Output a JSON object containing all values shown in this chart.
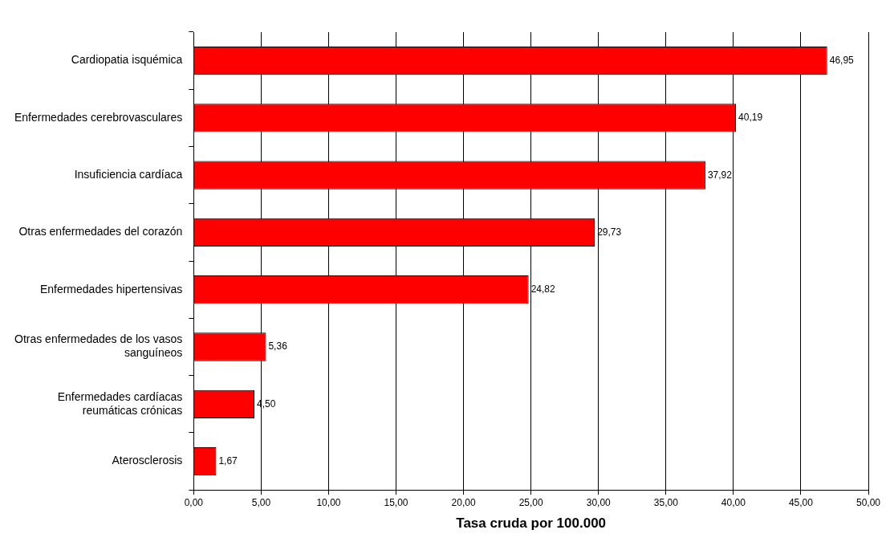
{
  "chart_data": {
    "type": "bar",
    "orientation": "horizontal",
    "xlabel": "Tasa cruda por 100.000",
    "categories": [
      "Cardiopatia isquémica",
      "Enfermedades cerebrovasculares",
      "Insuficiencia cardíaca",
      "Otras enfermedades del corazón",
      "Enfermedades hipertensivas",
      "Otras enfermedades de los vasos sanguíneos",
      "Enfermedades cardíacas reumáticas crónicas",
      "Aterosclerosis"
    ],
    "values": [
      46.95,
      40.19,
      37.92,
      29.73,
      24.82,
      5.36,
      4.5,
      1.67
    ],
    "value_labels": [
      "46,95",
      "40,19",
      "37,92",
      "29,73",
      "24,82",
      "5,36",
      "4,50",
      "1,67"
    ],
    "color": "#ff0000",
    "xlim": [
      0,
      50
    ],
    "xticks": [
      {
        "value": 0,
        "label": "0,00"
      },
      {
        "value": 5,
        "label": "5,00"
      },
      {
        "value": 10,
        "label": "10,00"
      },
      {
        "value": 15,
        "label": "15,00"
      },
      {
        "value": 20,
        "label": "20,00"
      },
      {
        "value": 25,
        "label": "25,00"
      },
      {
        "value": 30,
        "label": "30,00"
      },
      {
        "value": 35,
        "label": "35,00"
      },
      {
        "value": 40,
        "label": "40,00"
      },
      {
        "value": 45,
        "label": "45,00"
      },
      {
        "value": 50,
        "label": "50,00"
      }
    ],
    "grid": "x",
    "legend": false
  }
}
